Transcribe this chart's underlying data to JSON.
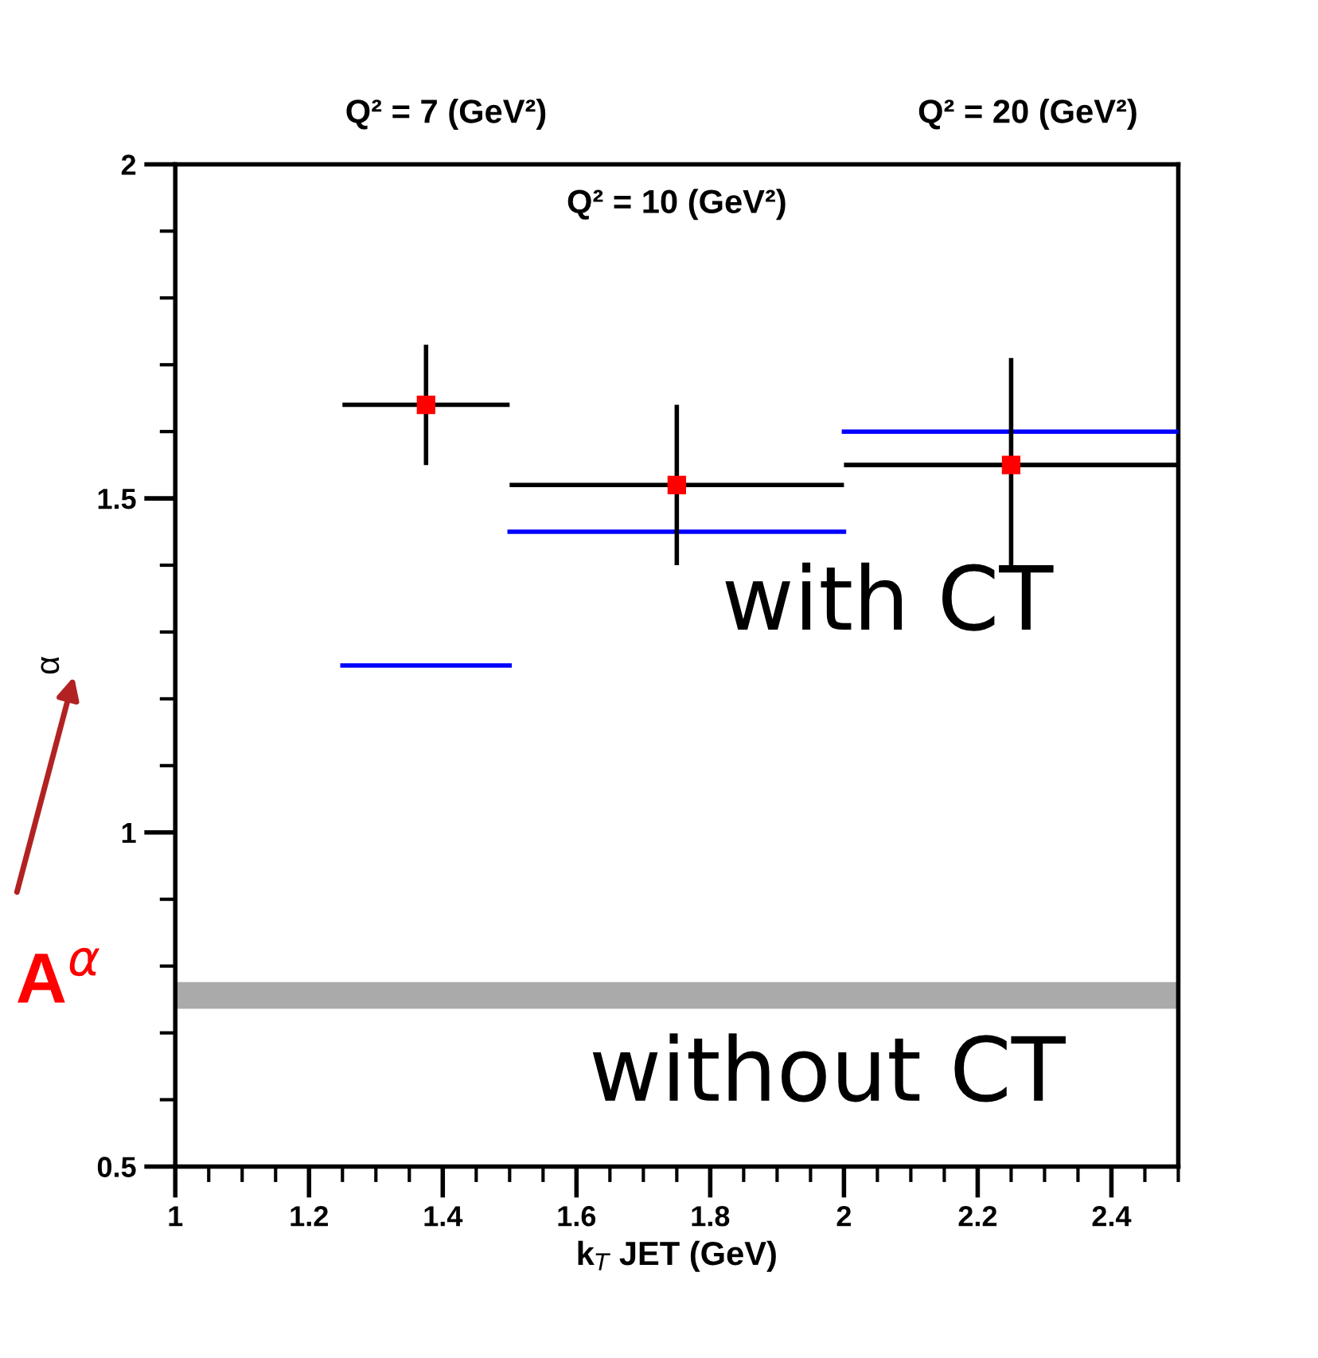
{
  "chart_data": {
    "type": "scatter",
    "xlabel": "k$_{T}$ JET (GeV)",
    "ylabel": "α",
    "xlim": [
      1,
      2.5
    ],
    "xticks": [
      1,
      1.2,
      1.4,
      1.6,
      1.8,
      2,
      2.2,
      2.4
    ],
    "ylim": [
      0.5,
      2
    ],
    "yticks": [
      0.5,
      1,
      1.5,
      2
    ],
    "grid": false,
    "legend": false,
    "series": [
      {
        "type": "line",
        "color": "#0000ff",
        "marker": "none",
        "x": [
          1.25,
          1.5,
          null,
          1.5,
          2,
          null,
          2,
          2.5
        ],
        "values": [
          1.25,
          1.25,
          null,
          1.45,
          1.45,
          null,
          1.6,
          1.6
        ]
      },
      {
        "color": "#ff0000",
        "marker": "square",
        "x": [
          1.375,
          1.75,
          2.25
        ],
        "values": [
          1.64,
          1.52,
          1.55
        ],
        "errors": [
          [
            1.55,
            1.73
          ],
          [
            1.4,
            1.64
          ],
          [
            1.39,
            1.71
          ]
        ],
        "xerrors": [
          [
            1.25,
            1.5
          ],
          [
            1.5,
            2
          ],
          [
            2,
            2.5
          ]
        ]
      }
    ],
    "bands": [
      {
        "axis": "y",
        "from": 0.736,
        "to": 0.776,
        "color": "#aaaaaa"
      }
    ],
    "annotations": [
      "Q² = 7 (GeV²)",
      "Q² = 20 (GeV²)",
      "Q² = 10 (GeV²)",
      "with CT",
      "without CT",
      "A$^{α}$"
    ]
  }
}
